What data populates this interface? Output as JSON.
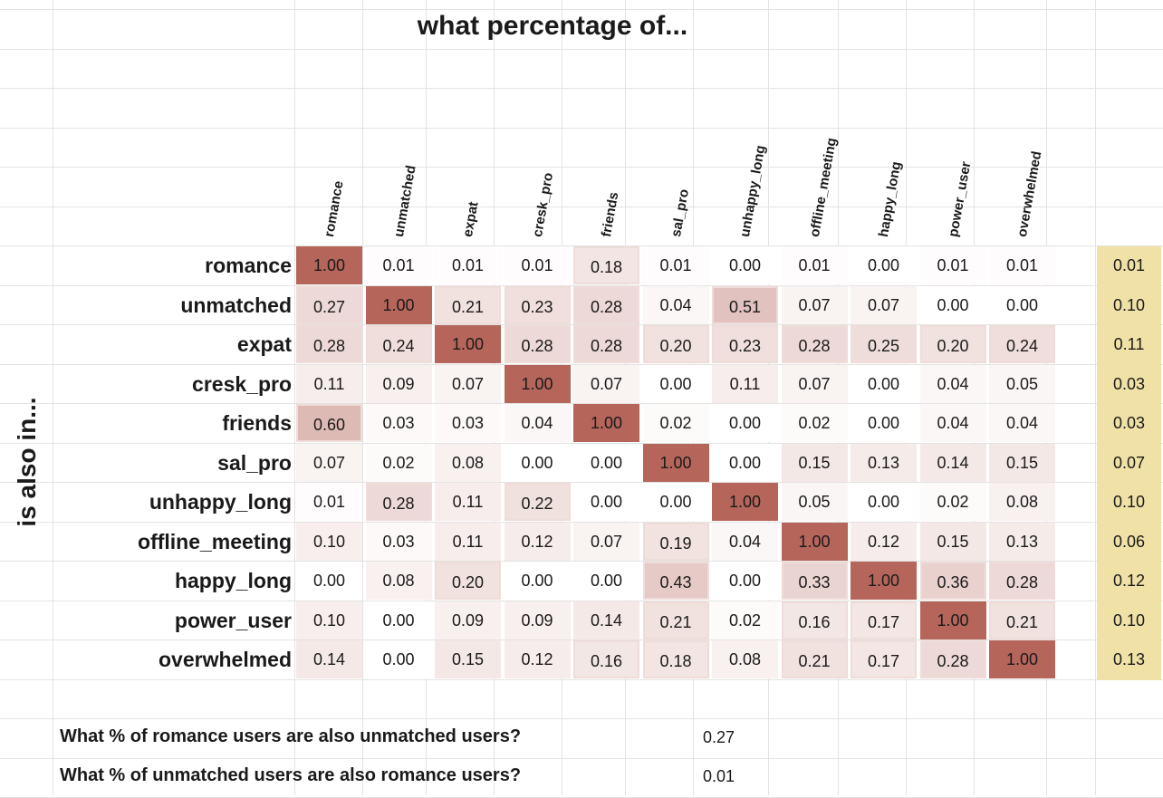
{
  "sheet": {
    "title": "what percentage of...",
    "ylabel": "is also in..."
  },
  "chart_data": {
    "type": "heatmap",
    "title": "what percentage of...",
    "ylabel": "is also in...",
    "rows": [
      "romance",
      "unmatched",
      "expat",
      "cresk_pro",
      "friends",
      "sal_pro",
      "unhappy_long",
      "offline_meeting",
      "happy_long",
      "power_user",
      "overwhelmed"
    ],
    "columns": [
      "romance",
      "unmatched",
      "expat",
      "cresk_pro",
      "friends",
      "sal_pro",
      "unhappy_long",
      "offline_meeting",
      "happy_long",
      "power_user",
      "overwhelmed"
    ],
    "values": [
      [
        1.0,
        0.01,
        0.01,
        0.01,
        0.18,
        0.01,
        0.0,
        0.01,
        0.0,
        0.01,
        0.01
      ],
      [
        0.27,
        1.0,
        0.21,
        0.23,
        0.28,
        0.04,
        0.51,
        0.07,
        0.07,
        0.0,
        0.0
      ],
      [
        0.28,
        0.24,
        1.0,
        0.28,
        0.28,
        0.2,
        0.23,
        0.28,
        0.25,
        0.2,
        0.24
      ],
      [
        0.11,
        0.09,
        0.07,
        1.0,
        0.07,
        0.0,
        0.11,
        0.07,
        0.0,
        0.04,
        0.05
      ],
      [
        0.6,
        0.03,
        0.03,
        0.04,
        1.0,
        0.02,
        0.0,
        0.02,
        0.0,
        0.04,
        0.04
      ],
      [
        0.07,
        0.02,
        0.08,
        0.0,
        0.0,
        1.0,
        0.0,
        0.15,
        0.13,
        0.14,
        0.15
      ],
      [
        0.01,
        0.28,
        0.11,
        0.22,
        0.0,
        0.0,
        1.0,
        0.05,
        0.0,
        0.02,
        0.08
      ],
      [
        0.1,
        0.03,
        0.11,
        0.12,
        0.07,
        0.19,
        0.04,
        1.0,
        0.12,
        0.15,
        0.13
      ],
      [
        0.0,
        0.08,
        0.2,
        0.0,
        0.0,
        0.43,
        0.0,
        0.33,
        1.0,
        0.36,
        0.28
      ],
      [
        0.1,
        0.0,
        0.09,
        0.09,
        0.14,
        0.21,
        0.02,
        0.16,
        0.17,
        1.0,
        0.21
      ],
      [
        0.14,
        0.0,
        0.15,
        0.12,
        0.16,
        0.18,
        0.08,
        0.21,
        0.17,
        0.28,
        1.0
      ]
    ],
    "extra_column": {
      "values": [
        0.01,
        0.1,
        0.11,
        0.03,
        0.03,
        0.07,
        0.1,
        0.06,
        0.12,
        0.1,
        0.13
      ],
      "color": "#f0e2a6"
    },
    "colors": {
      "high": "#b5655a",
      "low": "#ffffff",
      "border": "#efdcd8"
    },
    "grid": true
  },
  "questions": [
    {
      "text": "What % of romance users are also unmatched users?",
      "value": "0.27"
    },
    {
      "text": "What % of unmatched users are also romance users?",
      "value": "0.01"
    }
  ]
}
